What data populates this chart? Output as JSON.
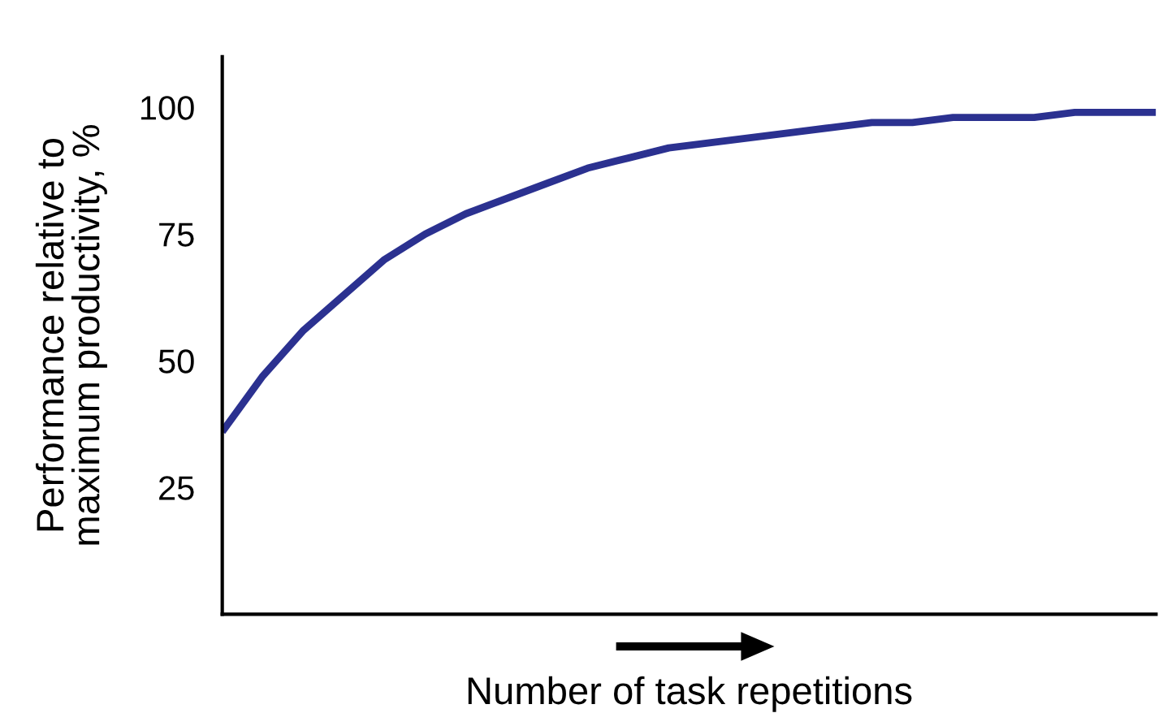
{
  "chart_data": {
    "type": "line",
    "xlabel": "Number of task repetitions",
    "ylabel": "Performance relative to\nmaximum productivity, %",
    "categories": [
      null,
      null,
      null,
      null,
      null,
      null,
      null,
      null,
      null,
      null,
      null,
      null,
      null,
      null,
      null,
      null,
      null,
      null,
      null,
      null,
      null,
      null,
      null,
      null
    ],
    "series": [
      {
        "color": "#2b3190",
        "values": [
          36,
          47,
          56,
          63,
          70,
          75,
          79,
          82,
          85,
          88,
          90,
          92,
          93,
          94,
          95,
          96,
          97,
          97,
          98,
          98,
          98,
          99,
          99,
          99
        ]
      }
    ],
    "ylim": [
      0,
      110
    ],
    "yticks": [
      25,
      50,
      75,
      100
    ],
    "grid": false,
    "legend": false,
    "marker": "none",
    "line_style": "solid"
  }
}
